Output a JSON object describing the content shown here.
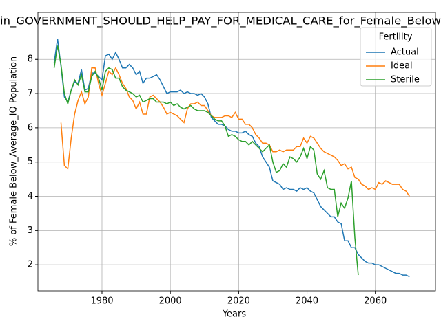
{
  "chart_data": {
    "type": "line",
    "title": "in_GOVERNMENT_SHOULD_HELP_PAY_FOR_MEDICAL_CARE_for_Female_Below",
    "x_label": "Years",
    "y_label": "% of Female Below_Average_IQ Population",
    "legend_title": "Fertility",
    "legend": "upper right",
    "grid": true,
    "xlim": [
      1961.25,
      2077.6
    ],
    "ylim": [
      1.24,
      9.37
    ],
    "xticks": [
      1980,
      2000,
      2020,
      2040,
      2060
    ],
    "yticks": [
      2,
      3,
      4,
      5,
      6,
      7,
      8
    ],
    "x": [
      1966,
      1967,
      1968,
      1969,
      1970,
      1971,
      1972,
      1973,
      1974,
      1975,
      1976,
      1977,
      1978,
      1979,
      1980,
      1981,
      1982,
      1983,
      1984,
      1985,
      1986,
      1987,
      1988,
      1989,
      1990,
      1991,
      1992,
      1993,
      1994,
      1995,
      1996,
      1997,
      1998,
      1999,
      2000,
      2001,
      2002,
      2003,
      2004,
      2005,
      2006,
      2007,
      2008,
      2009,
      2010,
      2011,
      2012,
      2013,
      2014,
      2015,
      2016,
      2017,
      2018,
      2019,
      2020,
      2021,
      2022,
      2023,
      2024,
      2025,
      2026,
      2027,
      2028,
      2029,
      2030,
      2031,
      2032,
      2033,
      2034,
      2035,
      2036,
      2037,
      2038,
      2039,
      2040,
      2041,
      2042,
      2043,
      2044,
      2045,
      2046,
      2047,
      2048,
      2049,
      2050,
      2051,
      2052,
      2053,
      2054,
      2055,
      2056,
      2057,
      2058,
      2059,
      2060,
      2061,
      2062,
      2063,
      2064,
      2065,
      2066,
      2067,
      2068,
      2069,
      2070
    ],
    "series": [
      {
        "name": "Actual",
        "color": "#1f77b4",
        "values": [
          7.9,
          8.6,
          7.8,
          6.9,
          6.75,
          7.1,
          7.35,
          7.3,
          7.7,
          7.1,
          7.15,
          7.6,
          7.6,
          7.5,
          7.4,
          8.1,
          8.15,
          8.0,
          8.2,
          8.0,
          7.75,
          7.75,
          7.85,
          7.75,
          7.55,
          7.65,
          7.3,
          7.45,
          7.45,
          7.5,
          7.55,
          7.4,
          7.2,
          7.0,
          7.05,
          7.05,
          7.05,
          7.1,
          7.0,
          7.05,
          7.0,
          7.0,
          6.95,
          7.0,
          6.9,
          6.7,
          6.3,
          6.2,
          6.1,
          6.1,
          6.05,
          5.95,
          5.9,
          5.9,
          5.85,
          5.85,
          5.9,
          5.8,
          5.75,
          5.55,
          5.45,
          5.15,
          5.0,
          4.85,
          4.45,
          4.4,
          4.35,
          4.2,
          4.25,
          4.2,
          4.2,
          4.15,
          4.25,
          4.2,
          4.25,
          4.15,
          4.1,
          3.9,
          3.7,
          3.6,
          3.5,
          3.4,
          3.4,
          3.25,
          3.2,
          2.7,
          2.7,
          2.5,
          2.5,
          2.3,
          2.2,
          2.1,
          2.05,
          2.05,
          2.0,
          2.0,
          1.95,
          1.9,
          1.85,
          1.8,
          1.75,
          1.75,
          1.7,
          1.7,
          1.65
        ]
      },
      {
        "name": "Ideal",
        "color": "#ff7f0e",
        "values": [
          null,
          null,
          6.15,
          4.9,
          4.8,
          5.7,
          6.4,
          6.8,
          7.05,
          6.7,
          6.9,
          7.75,
          7.75,
          7.3,
          6.95,
          7.3,
          7.65,
          7.55,
          7.75,
          7.55,
          7.3,
          7.15,
          6.9,
          6.8,
          6.55,
          6.75,
          6.4,
          6.4,
          6.9,
          6.95,
          6.85,
          6.75,
          6.6,
          6.4,
          6.45,
          6.4,
          6.35,
          6.25,
          6.15,
          6.55,
          6.7,
          6.7,
          6.75,
          6.65,
          6.65,
          6.5,
          6.35,
          6.3,
          6.3,
          6.3,
          6.35,
          6.35,
          6.3,
          6.45,
          6.25,
          6.25,
          6.1,
          6.1,
          6.0,
          5.8,
          5.7,
          5.55,
          5.55,
          5.5,
          5.3,
          5.3,
          5.35,
          5.3,
          5.35,
          5.35,
          5.35,
          5.45,
          5.45,
          5.7,
          5.55,
          5.75,
          5.7,
          5.55,
          5.4,
          5.3,
          5.25,
          5.2,
          5.15,
          5.05,
          4.9,
          4.95,
          4.8,
          4.85,
          4.55,
          4.5,
          4.35,
          4.3,
          4.2,
          4.25,
          4.2,
          4.4,
          4.35,
          4.45,
          4.4,
          4.35,
          4.35,
          4.35,
          4.2,
          4.15,
          4.0
        ]
      },
      {
        "name": "Sterile",
        "color": "#2ca02c",
        "values": [
          7.75,
          8.4,
          7.85,
          7.0,
          6.7,
          7.1,
          7.4,
          7.25,
          7.55,
          7.05,
          7.05,
          7.5,
          7.65,
          7.45,
          7.1,
          7.65,
          7.75,
          7.7,
          7.45,
          7.45,
          7.2,
          7.1,
          7.05,
          7.0,
          6.9,
          6.95,
          6.75,
          6.8,
          6.85,
          6.85,
          6.75,
          6.75,
          6.75,
          6.7,
          6.75,
          6.65,
          6.7,
          6.6,
          6.55,
          6.6,
          6.65,
          6.55,
          6.5,
          6.5,
          6.5,
          6.45,
          6.35,
          6.25,
          6.2,
          6.2,
          6.05,
          5.75,
          5.8,
          5.75,
          5.65,
          5.6,
          5.6,
          5.5,
          5.6,
          5.5,
          5.4,
          5.3,
          5.4,
          5.5,
          5.0,
          4.7,
          4.75,
          4.95,
          4.85,
          5.15,
          5.1,
          5.0,
          5.15,
          5.4,
          5.1,
          5.45,
          5.35,
          4.65,
          4.5,
          4.75,
          4.25,
          4.2,
          4.2,
          3.4,
          3.8,
          3.65,
          3.95,
          4.45,
          2.8,
          1.7,
          null,
          null,
          null,
          null,
          null,
          null,
          null,
          null,
          null,
          null,
          null,
          null,
          null,
          null,
          null
        ]
      }
    ]
  }
}
